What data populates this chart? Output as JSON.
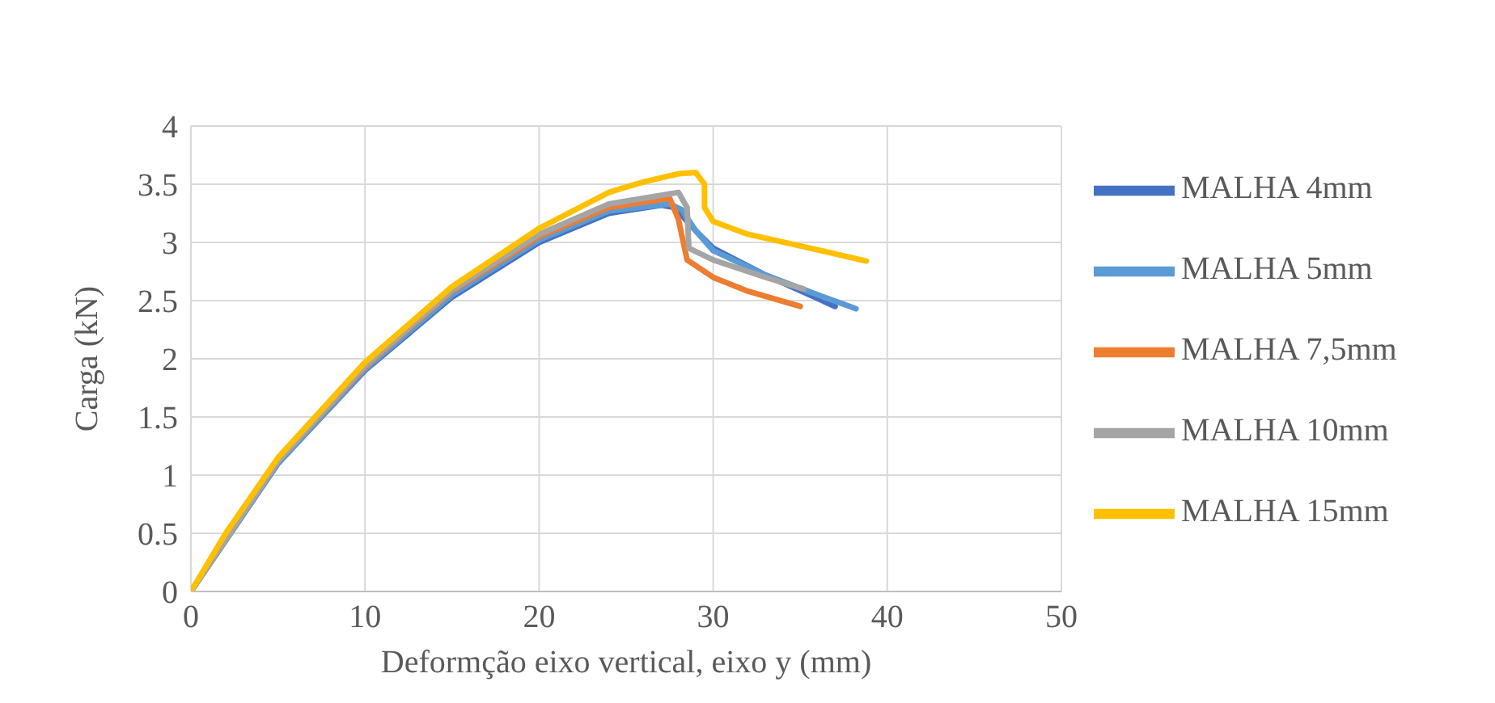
{
  "chart_data": {
    "type": "line",
    "xlabel": "Deformção eixo vertical, eixo y (mm)",
    "ylabel": "Carga (kN)",
    "xlim": [
      0,
      50
    ],
    "xticks": [
      0,
      10,
      20,
      30,
      40,
      50
    ],
    "ylim": [
      0,
      4
    ],
    "yticks": [
      0,
      0.5,
      1,
      1.5,
      2,
      2.5,
      3,
      3.5,
      4
    ],
    "grid": true,
    "legend": "right",
    "marker": "none",
    "line_style": "solid",
    "series": [
      {
        "name": "MALHA 4mm",
        "color": "#4472c4",
        "x": [
          0,
          5,
          10,
          15,
          20,
          24,
          27,
          27.8,
          29,
          30,
          33,
          37
        ],
        "values": [
          0,
          1.1,
          1.9,
          2.53,
          3.0,
          3.25,
          3.32,
          3.3,
          3.1,
          2.95,
          2.72,
          2.45
        ]
      },
      {
        "name": "MALHA 5mm",
        "color": "#5b9bd5",
        "x": [
          0,
          5,
          10,
          15,
          20,
          24,
          27.5,
          28.2,
          29,
          30,
          33,
          36,
          38.2
        ],
        "values": [
          0,
          1.1,
          1.91,
          2.55,
          3.02,
          3.27,
          3.33,
          3.28,
          3.1,
          2.93,
          2.72,
          2.55,
          2.43
        ]
      },
      {
        "name": "MALHA 7,5mm",
        "color": "#ed7d31",
        "x": [
          0,
          5,
          10,
          15,
          20,
          24,
          27.5,
          28,
          28.5,
          30,
          32,
          35
        ],
        "values": [
          0,
          1.12,
          1.93,
          2.58,
          3.05,
          3.3,
          3.38,
          3.2,
          2.85,
          2.7,
          2.58,
          2.45
        ]
      },
      {
        "name": "MALHA 10mm",
        "color": "#a5a5a5",
        "x": [
          0,
          5,
          10,
          15,
          20,
          24,
          28,
          28.5,
          28.6,
          30,
          33,
          35.2
        ],
        "values": [
          0,
          1.12,
          1.94,
          2.59,
          3.07,
          3.33,
          3.43,
          3.3,
          2.95,
          2.85,
          2.7,
          2.6
        ]
      },
      {
        "name": "MALHA 15mm",
        "color": "#ffc000",
        "x": [
          0,
          2,
          5,
          10,
          15,
          20,
          24,
          26,
          28,
          29,
          29.5,
          29.5,
          30,
          32,
          35,
          38.8
        ],
        "values": [
          0,
          0.5,
          1.15,
          1.97,
          2.62,
          3.12,
          3.43,
          3.52,
          3.59,
          3.6,
          3.5,
          3.3,
          3.18,
          3.07,
          2.97,
          2.84
        ]
      }
    ]
  }
}
